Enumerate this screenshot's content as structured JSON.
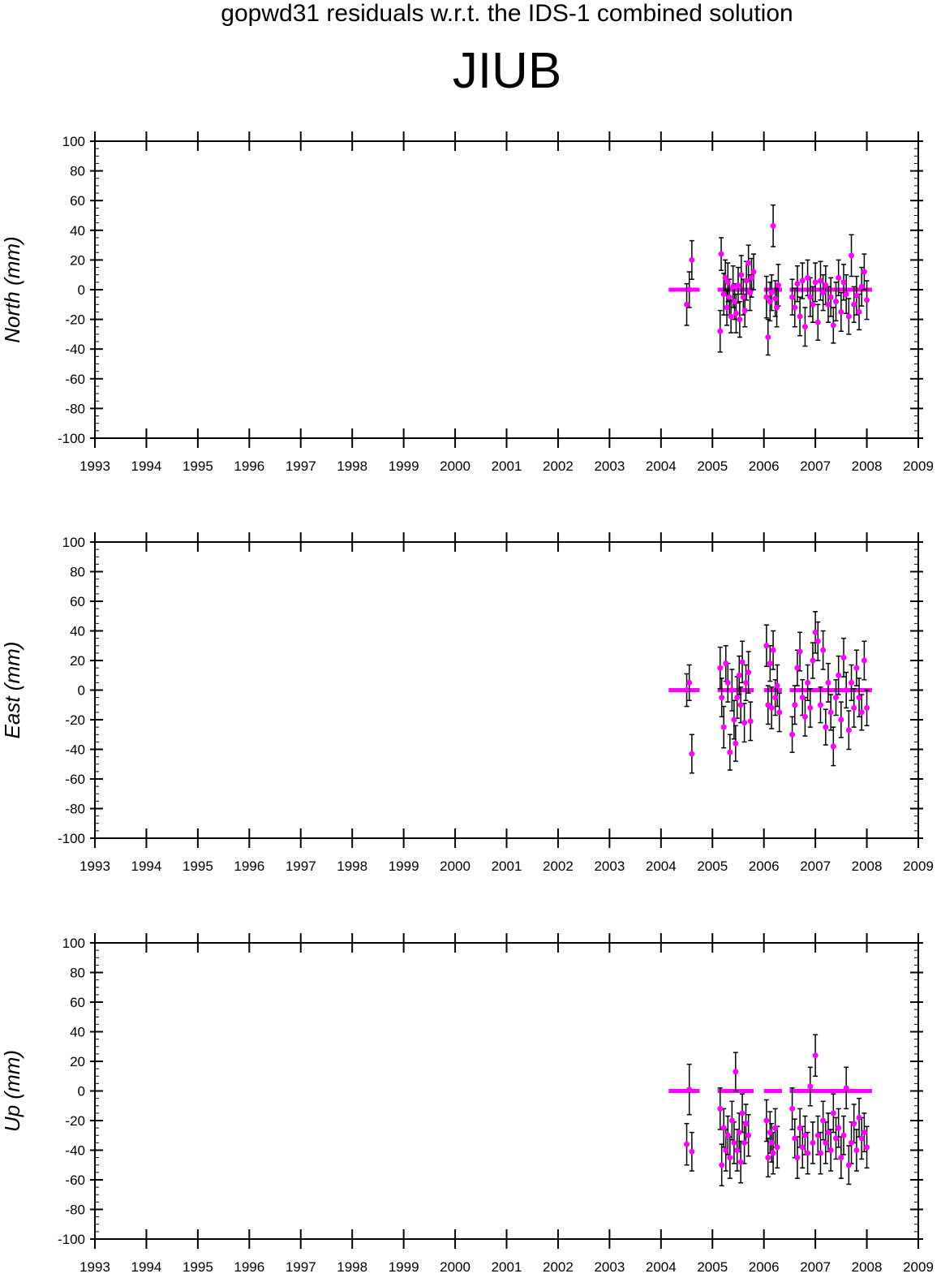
{
  "header": {
    "title": "gopwd31 residuals w.r.t. the IDS-1 combined solution",
    "station": "JIUB"
  },
  "colors": {
    "point": "#ff00ff",
    "error_bar": "#000000",
    "axis": "#000000"
  },
  "chart_data": [
    {
      "type": "scatter",
      "ylabel": "North (mm)",
      "xlim": [
        1993,
        2009
      ],
      "ylim": [
        -100,
        100
      ],
      "x_ticks": [
        1993,
        1994,
        1995,
        1996,
        1997,
        1998,
        1999,
        2000,
        2001,
        2002,
        2003,
        2004,
        2005,
        2006,
        2007,
        2008,
        2009
      ],
      "y_ticks": [
        100,
        80,
        60,
        40,
        20,
        0,
        -20,
        -40,
        -60,
        -80,
        -100
      ],
      "zero_segments": [
        [
          2004.15,
          2004.75
        ],
        [
          2005.1,
          2005.8
        ],
        [
          2006.0,
          2006.35
        ],
        [
          2006.5,
          2008.1
        ]
      ],
      "points": [
        [
          2004.5,
          -10,
          14
        ],
        [
          2004.55,
          0,
          12
        ],
        [
          2004.6,
          20,
          13
        ],
        [
          2005.15,
          -28,
          14
        ],
        [
          2005.17,
          24,
          11
        ],
        [
          2005.22,
          -3,
          14
        ],
        [
          2005.25,
          8,
          12
        ],
        [
          2005.28,
          -12,
          12
        ],
        [
          2005.3,
          5,
          13
        ],
        [
          2005.33,
          -5,
          12
        ],
        [
          2005.36,
          -18,
          11
        ],
        [
          2005.4,
          2,
          14
        ],
        [
          2005.43,
          -8,
          12
        ],
        [
          2005.46,
          -16,
          13
        ],
        [
          2005.5,
          3,
          12
        ],
        [
          2005.53,
          -20,
          12
        ],
        [
          2005.56,
          10,
          13
        ],
        [
          2005.6,
          -5,
          12
        ],
        [
          2005.63,
          -14,
          11
        ],
        [
          2005.66,
          6,
          13
        ],
        [
          2005.7,
          18,
          12
        ],
        [
          2005.73,
          -2,
          12
        ],
        [
          2005.76,
          8,
          13
        ],
        [
          2005.8,
          12,
          12
        ],
        [
          2006.05,
          -5,
          14
        ],
        [
          2006.08,
          -32,
          12
        ],
        [
          2006.12,
          -8,
          13
        ],
        [
          2006.15,
          -2,
          12
        ],
        [
          2006.18,
          43,
          14
        ],
        [
          2006.22,
          -6,
          12
        ],
        [
          2006.25,
          -12,
          13
        ],
        [
          2006.28,
          3,
          14
        ],
        [
          2006.55,
          -5,
          12
        ],
        [
          2006.6,
          -12,
          13
        ],
        [
          2006.65,
          4,
          12
        ],
        [
          2006.7,
          -18,
          13
        ],
        [
          2006.75,
          6,
          12
        ],
        [
          2006.8,
          -25,
          13
        ],
        [
          2006.85,
          8,
          12
        ],
        [
          2006.9,
          -5,
          13
        ],
        [
          2006.95,
          -10,
          12
        ],
        [
          2007.0,
          5,
          13
        ],
        [
          2007.05,
          -22,
          12
        ],
        [
          2007.1,
          6,
          13
        ],
        [
          2007.15,
          -2,
          12
        ],
        [
          2007.2,
          3,
          13
        ],
        [
          2007.25,
          -10,
          12
        ],
        [
          2007.3,
          -5,
          13
        ],
        [
          2007.35,
          -24,
          12
        ],
        [
          2007.4,
          -8,
          13
        ],
        [
          2007.45,
          8,
          12
        ],
        [
          2007.5,
          -15,
          13
        ],
        [
          2007.55,
          5,
          12
        ],
        [
          2007.6,
          -3,
          13
        ],
        [
          2007.65,
          -18,
          12
        ],
        [
          2007.7,
          23,
          14
        ],
        [
          2007.75,
          -10,
          12
        ],
        [
          2007.8,
          -4,
          13
        ],
        [
          2007.85,
          -15,
          12
        ],
        [
          2007.9,
          2,
          13
        ],
        [
          2007.95,
          12,
          12
        ],
        [
          2008.0,
          -7,
          13
        ]
      ]
    },
    {
      "type": "scatter",
      "ylabel": "East (mm)",
      "xlim": [
        1993,
        2009
      ],
      "ylim": [
        -100,
        100
      ],
      "x_ticks": [
        1993,
        1994,
        1995,
        1996,
        1997,
        1998,
        1999,
        2000,
        2001,
        2002,
        2003,
        2004,
        2005,
        2006,
        2007,
        2008,
        2009
      ],
      "y_ticks": [
        100,
        80,
        60,
        40,
        20,
        0,
        -20,
        -40,
        -60,
        -80,
        -100
      ],
      "zero_segments": [
        [
          2004.15,
          2004.75
        ],
        [
          2005.1,
          2005.8
        ],
        [
          2006.0,
          2006.35
        ],
        [
          2006.5,
          2008.1
        ]
      ],
      "points": [
        [
          2004.5,
          0,
          11
        ],
        [
          2004.55,
          5,
          12
        ],
        [
          2004.6,
          -43,
          13
        ],
        [
          2005.15,
          15,
          14
        ],
        [
          2005.18,
          -5,
          13
        ],
        [
          2005.22,
          -25,
          14
        ],
        [
          2005.26,
          18,
          12
        ],
        [
          2005.3,
          5,
          13
        ],
        [
          2005.34,
          -42,
          12
        ],
        [
          2005.38,
          0,
          14
        ],
        [
          2005.42,
          -20,
          13
        ],
        [
          2005.45,
          -36,
          12
        ],
        [
          2005.48,
          -5,
          14
        ],
        [
          2005.52,
          10,
          13
        ],
        [
          2005.55,
          -10,
          12
        ],
        [
          2005.58,
          19,
          14
        ],
        [
          2005.62,
          -22,
          13
        ],
        [
          2005.65,
          5,
          12
        ],
        [
          2005.7,
          12,
          14
        ],
        [
          2005.74,
          -21,
          13
        ],
        [
          2006.05,
          30,
          14
        ],
        [
          2006.08,
          -10,
          13
        ],
        [
          2006.12,
          18,
          12
        ],
        [
          2006.15,
          -12,
          14
        ],
        [
          2006.18,
          27,
          13
        ],
        [
          2006.22,
          -5,
          12
        ],
        [
          2006.26,
          3,
          14
        ],
        [
          2006.3,
          -15,
          13
        ],
        [
          2006.55,
          -30,
          12
        ],
        [
          2006.6,
          -10,
          13
        ],
        [
          2006.65,
          15,
          12
        ],
        [
          2006.7,
          26,
          13
        ],
        [
          2006.75,
          -5,
          12
        ],
        [
          2006.8,
          -18,
          13
        ],
        [
          2006.85,
          5,
          12
        ],
        [
          2006.9,
          -12,
          13
        ],
        [
          2006.95,
          20,
          12
        ],
        [
          2007.0,
          39,
          14
        ],
        [
          2007.05,
          33,
          13
        ],
        [
          2007.1,
          -10,
          12
        ],
        [
          2007.15,
          27,
          13
        ],
        [
          2007.2,
          -25,
          12
        ],
        [
          2007.25,
          5,
          13
        ],
        [
          2007.3,
          -15,
          12
        ],
        [
          2007.35,
          -38,
          13
        ],
        [
          2007.4,
          -5,
          12
        ],
        [
          2007.45,
          10,
          13
        ],
        [
          2007.5,
          -20,
          12
        ],
        [
          2007.55,
          22,
          13
        ],
        [
          2007.6,
          0,
          12
        ],
        [
          2007.65,
          -27,
          13
        ],
        [
          2007.7,
          5,
          12
        ],
        [
          2007.75,
          -12,
          13
        ],
        [
          2007.8,
          15,
          12
        ],
        [
          2007.85,
          -5,
          13
        ],
        [
          2007.9,
          -15,
          12
        ],
        [
          2007.95,
          20,
          13
        ],
        [
          2008.0,
          -12,
          12
        ]
      ]
    },
    {
      "type": "scatter",
      "ylabel": "Up (mm)",
      "xlim": [
        1993,
        2009
      ],
      "ylim": [
        -100,
        100
      ],
      "x_ticks": [
        1993,
        1994,
        1995,
        1996,
        1997,
        1998,
        1999,
        2000,
        2001,
        2002,
        2003,
        2004,
        2005,
        2006,
        2007,
        2008,
        2009
      ],
      "y_ticks": [
        100,
        80,
        60,
        40,
        20,
        0,
        -20,
        -40,
        -60,
        -80,
        -100
      ],
      "zero_segments": [
        [
          2004.15,
          2004.75
        ],
        [
          2005.1,
          2005.8
        ],
        [
          2006.0,
          2006.35
        ],
        [
          2006.5,
          2008.1
        ]
      ],
      "points": [
        [
          2004.5,
          -36,
          14
        ],
        [
          2004.55,
          1,
          17
        ],
        [
          2004.6,
          -41,
          13
        ],
        [
          2005.15,
          -12,
          14
        ],
        [
          2005.18,
          -50,
          14
        ],
        [
          2005.22,
          -25,
          13
        ],
        [
          2005.26,
          -40,
          14
        ],
        [
          2005.3,
          -30,
          13
        ],
        [
          2005.34,
          -45,
          14
        ],
        [
          2005.38,
          -20,
          13
        ],
        [
          2005.42,
          -35,
          14
        ],
        [
          2005.45,
          13,
          13
        ],
        [
          2005.48,
          -40,
          14
        ],
        [
          2005.52,
          -28,
          13
        ],
        [
          2005.55,
          -48,
          14
        ],
        [
          2005.58,
          -15,
          13
        ],
        [
          2005.62,
          -35,
          14
        ],
        [
          2005.65,
          -22,
          13
        ],
        [
          2005.7,
          -30,
          14
        ],
        [
          2006.05,
          -20,
          14
        ],
        [
          2006.08,
          -45,
          13
        ],
        [
          2006.12,
          -28,
          14
        ],
        [
          2006.15,
          -35,
          13
        ],
        [
          2006.18,
          -42,
          14
        ],
        [
          2006.22,
          -25,
          13
        ],
        [
          2006.26,
          -38,
          14
        ],
        [
          2006.55,
          -12,
          14
        ],
        [
          2006.6,
          -32,
          13
        ],
        [
          2006.65,
          -45,
          14
        ],
        [
          2006.7,
          -25,
          13
        ],
        [
          2006.75,
          -38,
          14
        ],
        [
          2006.8,
          -30,
          13
        ],
        [
          2006.85,
          -42,
          14
        ],
        [
          2006.9,
          3,
          13
        ],
        [
          2006.95,
          -35,
          14
        ],
        [
          2007.0,
          24,
          14
        ],
        [
          2007.05,
          -30,
          13
        ],
        [
          2007.1,
          -42,
          14
        ],
        [
          2007.15,
          -20,
          13
        ],
        [
          2007.2,
          -35,
          14
        ],
        [
          2007.25,
          -28,
          13
        ],
        [
          2007.3,
          -40,
          14
        ],
        [
          2007.35,
          -15,
          13
        ],
        [
          2007.4,
          -32,
          14
        ],
        [
          2007.45,
          -25,
          13
        ],
        [
          2007.5,
          -45,
          14
        ],
        [
          2007.55,
          -30,
          13
        ],
        [
          2007.6,
          2,
          14
        ],
        [
          2007.65,
          -50,
          13
        ],
        [
          2007.7,
          -35,
          14
        ],
        [
          2007.75,
          -22,
          13
        ],
        [
          2007.8,
          -40,
          14
        ],
        [
          2007.85,
          -18,
          13
        ],
        [
          2007.9,
          -32,
          14
        ],
        [
          2007.95,
          -28,
          13
        ],
        [
          2008.0,
          -38,
          14
        ]
      ]
    }
  ]
}
